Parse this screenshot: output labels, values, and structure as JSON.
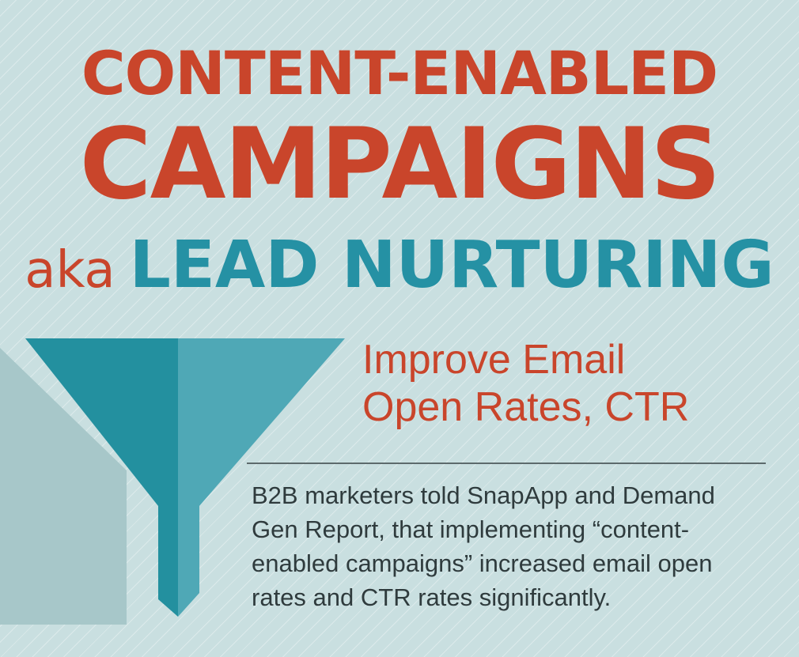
{
  "title": {
    "line1": "CONTENT-ENABLED",
    "line2": "CAMPAIGNS",
    "aka": "aka",
    "line3": "LEAD NURTURING"
  },
  "subhead": {
    "line1": "Improve Email",
    "line2": "Open Rates, CTR"
  },
  "body": {
    "line1": "B2B marketers told SnapApp and Demand",
    "line2": "Gen Report, that implementing “content-",
    "line3": "enabled campaigns” increased email open",
    "line4": "rates and CTR rates significantly."
  },
  "colors": {
    "background": "#c9dfe0",
    "title_red": "#c9452b",
    "title_teal": "#2591a4",
    "funnel_dark": "#23909f",
    "funnel_light": "#4fa8b6",
    "body_text": "#2f3b3d"
  },
  "icons": {
    "funnel": "funnel-icon"
  }
}
